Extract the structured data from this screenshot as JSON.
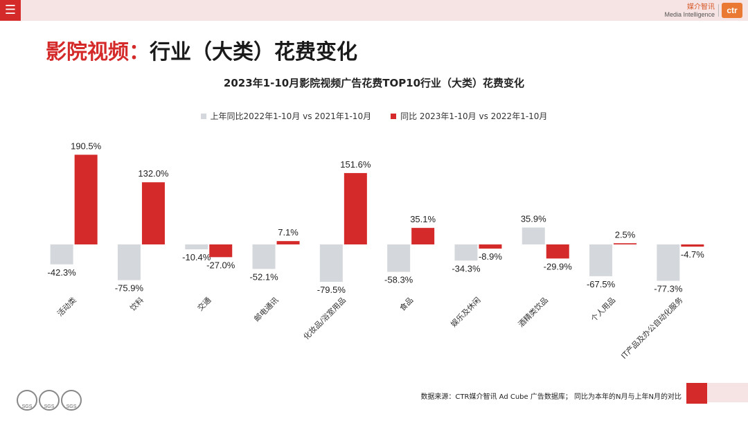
{
  "header": {
    "menu_icon": "hamburger-icon",
    "brand_cn": "媒介智讯",
    "brand_en": "Media Intelligence",
    "brand_logo": "ctr"
  },
  "page": {
    "title_highlight": "影院视频：",
    "title_rest": "行业（大类）花费变化"
  },
  "legend": {
    "prev": "上年同比2022年1-10月 vs 2021年1-10月",
    "curr": "同比 2023年1-10月 vs 2022年1-10月"
  },
  "colors": {
    "prev": "#d4d8dc",
    "curr": "#d42a2a"
  },
  "chart_data": {
    "type": "bar",
    "title": "2023年1-10月影院视频广告花费TOP10行业（大类）花费变化",
    "categories": [
      "活动类",
      "饮料",
      "交通",
      "邮电通讯",
      "化妆品/浴室用品",
      "食品",
      "娱乐及休闲",
      "酒精类饮品",
      "个人用品",
      "IT产品及办公自动化服务"
    ],
    "series": [
      {
        "name": "上年同比2022年1-10月 vs 2021年1-10月",
        "values": [
          -42.3,
          -75.9,
          -10.4,
          -52.1,
          -79.5,
          -58.3,
          -34.3,
          35.9,
          -67.5,
          -77.3
        ]
      },
      {
        "name": "同比 2023年1-10月 vs 2022年1-10月",
        "values": [
          190.5,
          132.0,
          -27.0,
          7.1,
          151.6,
          35.1,
          -8.9,
          -29.9,
          2.5,
          -4.7
        ]
      }
    ],
    "value_suffix": "%",
    "ylim": [
      -100,
      200
    ]
  },
  "footer": {
    "source": "数据来源：CTR媒介智讯 Ad Cube 广告数据库；  同比为本年的N月与上年N月的对比",
    "seal_label": "SGS"
  }
}
